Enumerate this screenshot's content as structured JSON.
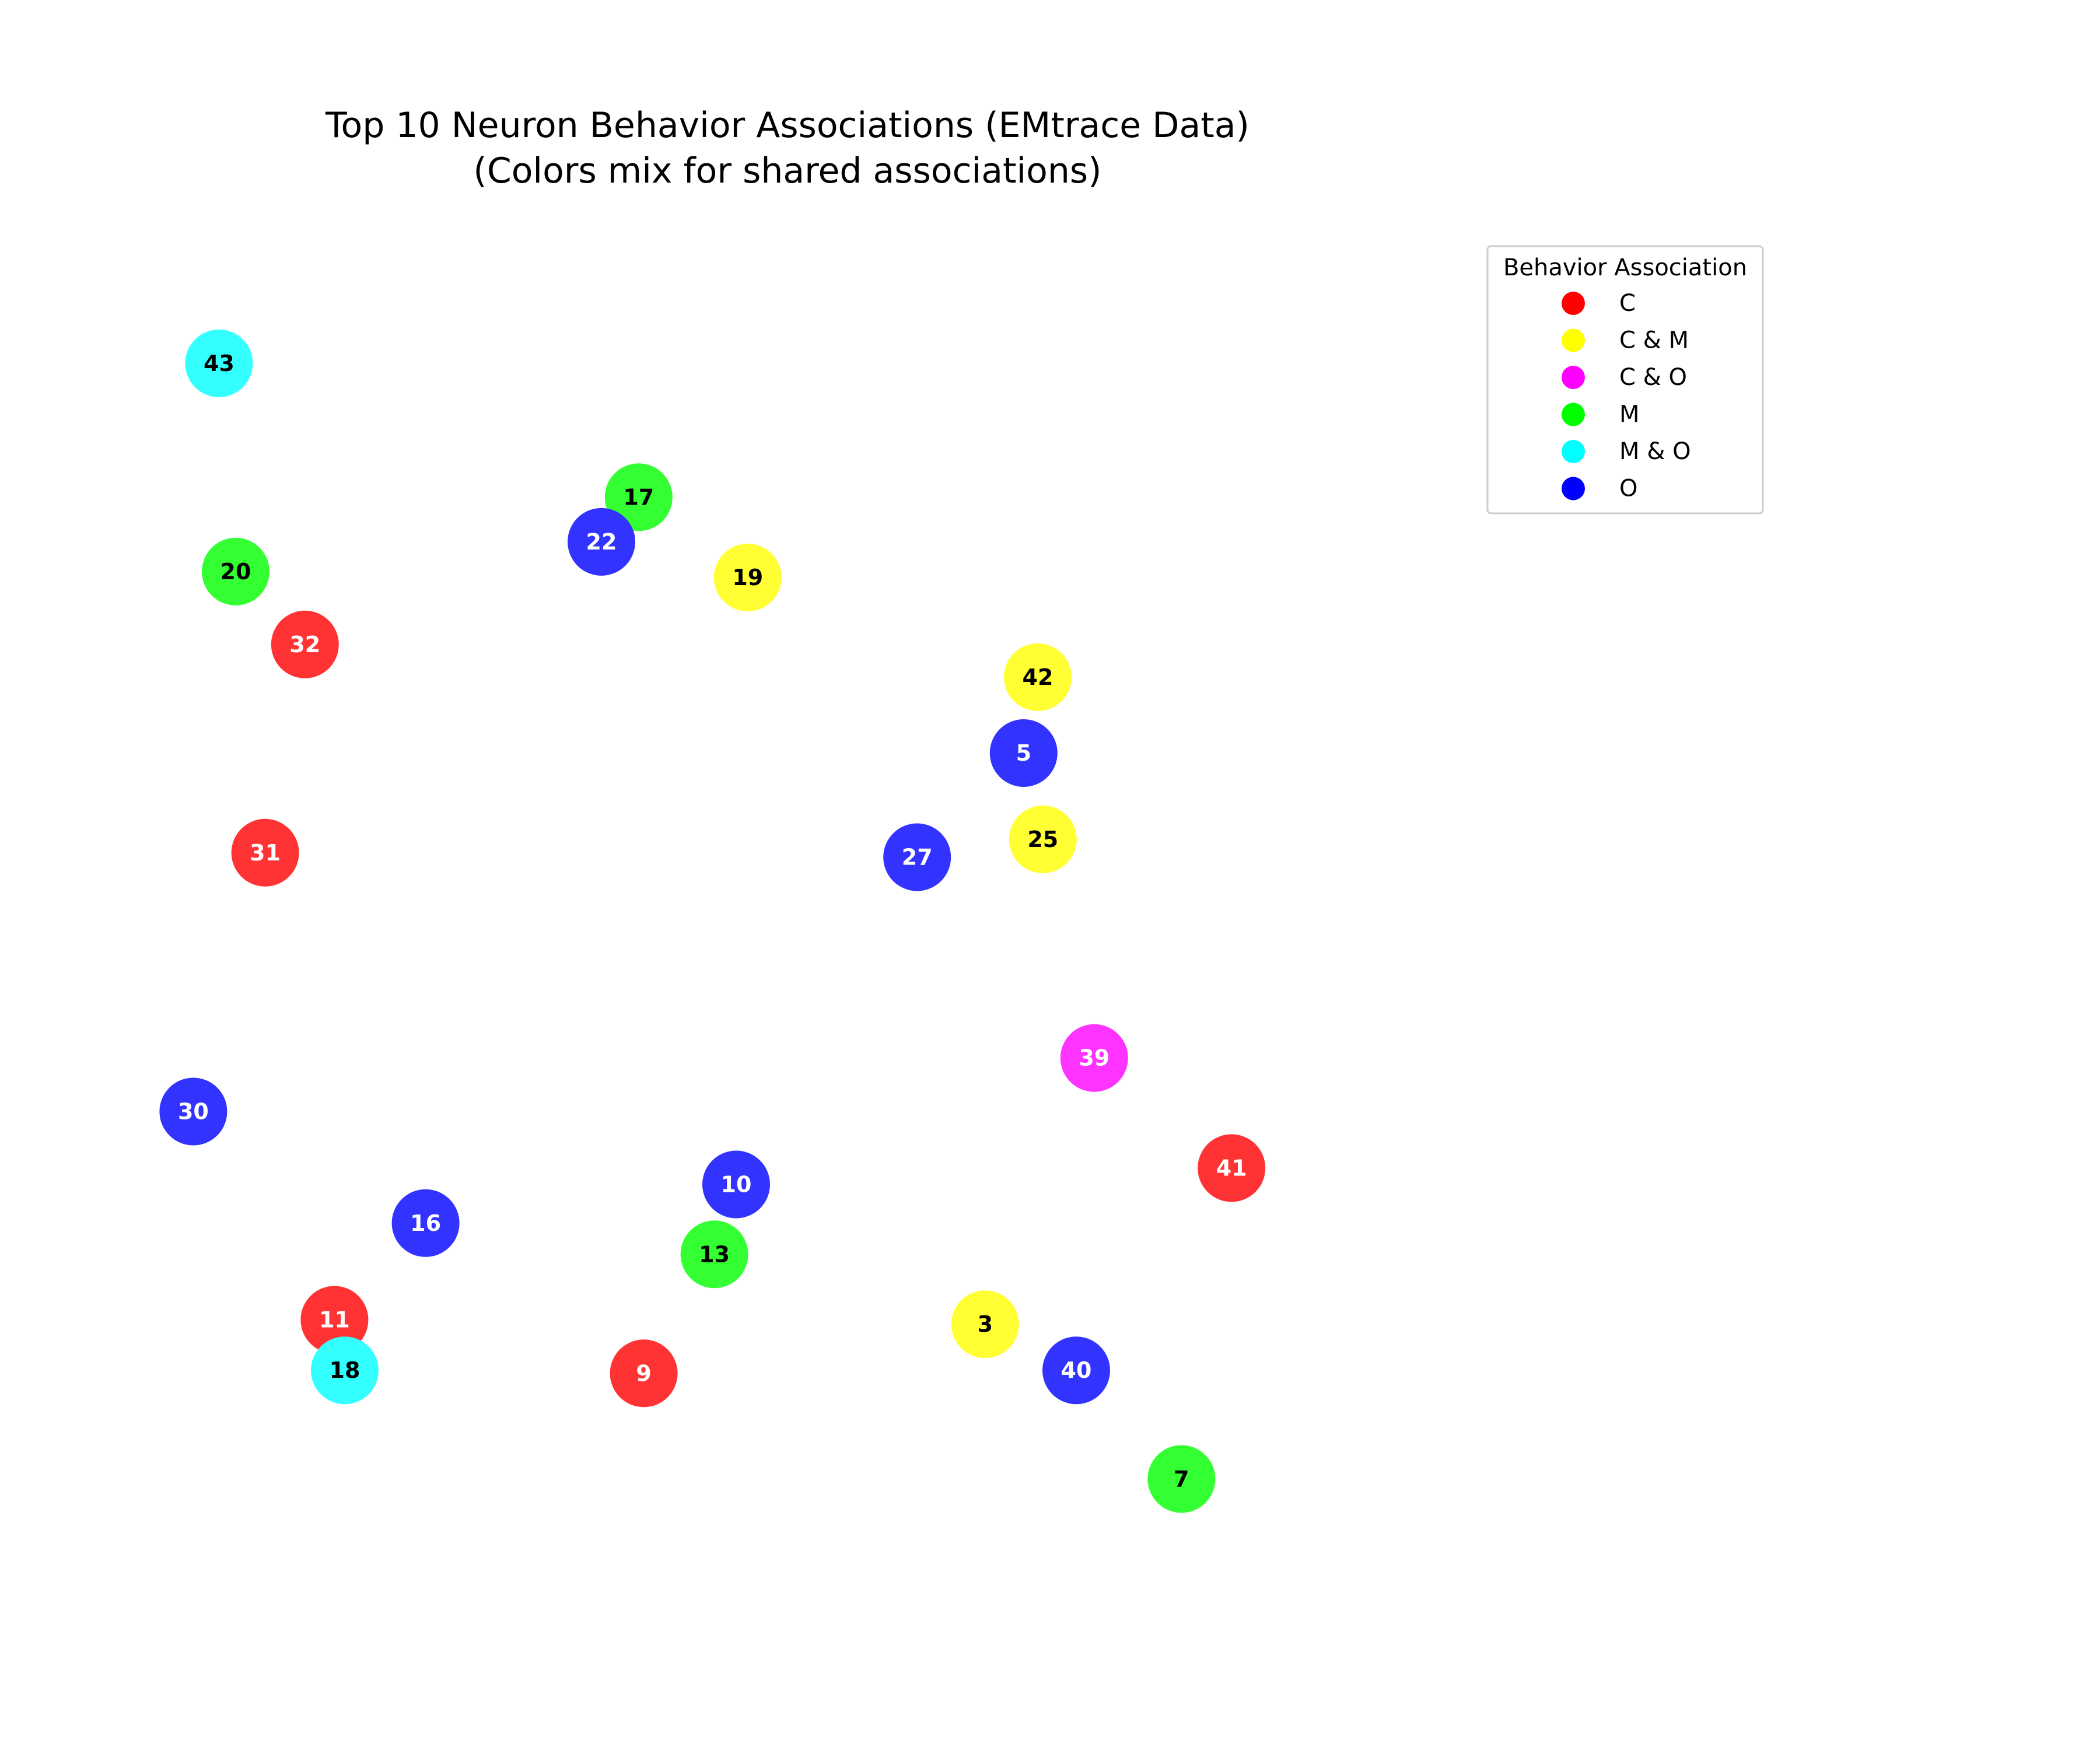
{
  "chart_data": {
    "type": "scatter",
    "title": "Top 10 Neuron Behavior Associations (EMtrace Data)",
    "subtitle": "(Colors mix for shared associations)",
    "xlabel": "",
    "ylabel": "",
    "axes_visible": false,
    "grid": false,
    "legend_placement": "top-right",
    "legend": {
      "title": "Behavior Association",
      "entries": [
        {
          "label": "C",
          "color": "#ff0000"
        },
        {
          "label": "C & M",
          "color": "#ffff00"
        },
        {
          "label": "C & O",
          "color": "#ff00ff"
        },
        {
          "label": "M",
          "color": "#00ff00"
        },
        {
          "label": "M & O",
          "color": "#00ffff"
        },
        {
          "label": "O",
          "color": "#0000ff"
        }
      ]
    },
    "point_colors": {
      "C": "#ff3333",
      "C & M": "#ffff33",
      "C & O": "#ff33ff",
      "M": "#33ff33",
      "M & O": "#33ffff",
      "O": "#3333ff"
    },
    "label_colors": {
      "C": "#ffffff",
      "C & M": "#000000",
      "C & O": "#ffffff",
      "M": "#000000",
      "M & O": "#000000",
      "O": "#ffffff"
    },
    "xlim": [
      0,
      100
    ],
    "ylim": [
      0,
      100
    ],
    "points": [
      {
        "id": "43",
        "group": "M & O",
        "x": 5.7,
        "y": 89.3
      },
      {
        "id": "17",
        "group": "M",
        "x": 38.4,
        "y": 80.3
      },
      {
        "id": "22",
        "group": "O",
        "x": 35.5,
        "y": 77.3
      },
      {
        "id": "20",
        "group": "M",
        "x": 7.0,
        "y": 75.3
      },
      {
        "id": "19",
        "group": "C & M",
        "x": 46.9,
        "y": 74.9
      },
      {
        "id": "32",
        "group": "C",
        "x": 12.4,
        "y": 70.4
      },
      {
        "id": "42",
        "group": "C & M",
        "x": 69.5,
        "y": 68.2
      },
      {
        "id": "5",
        "group": "O",
        "x": 68.4,
        "y": 63.1
      },
      {
        "id": "25",
        "group": "C & M",
        "x": 69.9,
        "y": 57.3
      },
      {
        "id": "27",
        "group": "O",
        "x": 60.1,
        "y": 56.1
      },
      {
        "id": "31",
        "group": "C",
        "x": 9.3,
        "y": 56.4
      },
      {
        "id": "39",
        "group": "C & O",
        "x": 73.9,
        "y": 42.6
      },
      {
        "id": "30",
        "group": "O",
        "x": 3.7,
        "y": 39.0
      },
      {
        "id": "41",
        "group": "C",
        "x": 84.6,
        "y": 35.2
      },
      {
        "id": "10",
        "group": "O",
        "x": 46.0,
        "y": 34.1
      },
      {
        "id": "16",
        "group": "O",
        "x": 21.8,
        "y": 31.5
      },
      {
        "id": "13",
        "group": "M",
        "x": 44.3,
        "y": 29.4
      },
      {
        "id": "11",
        "group": "C",
        "x": 14.7,
        "y": 25.0
      },
      {
        "id": "3",
        "group": "C & M",
        "x": 65.4,
        "y": 24.7
      },
      {
        "id": "18",
        "group": "M & O",
        "x": 15.5,
        "y": 21.6
      },
      {
        "id": "40",
        "group": "O",
        "x": 72.5,
        "y": 21.6
      },
      {
        "id": "9",
        "group": "C",
        "x": 38.8,
        "y": 21.4
      },
      {
        "id": "7",
        "group": "M",
        "x": 80.7,
        "y": 14.3
      }
    ]
  }
}
